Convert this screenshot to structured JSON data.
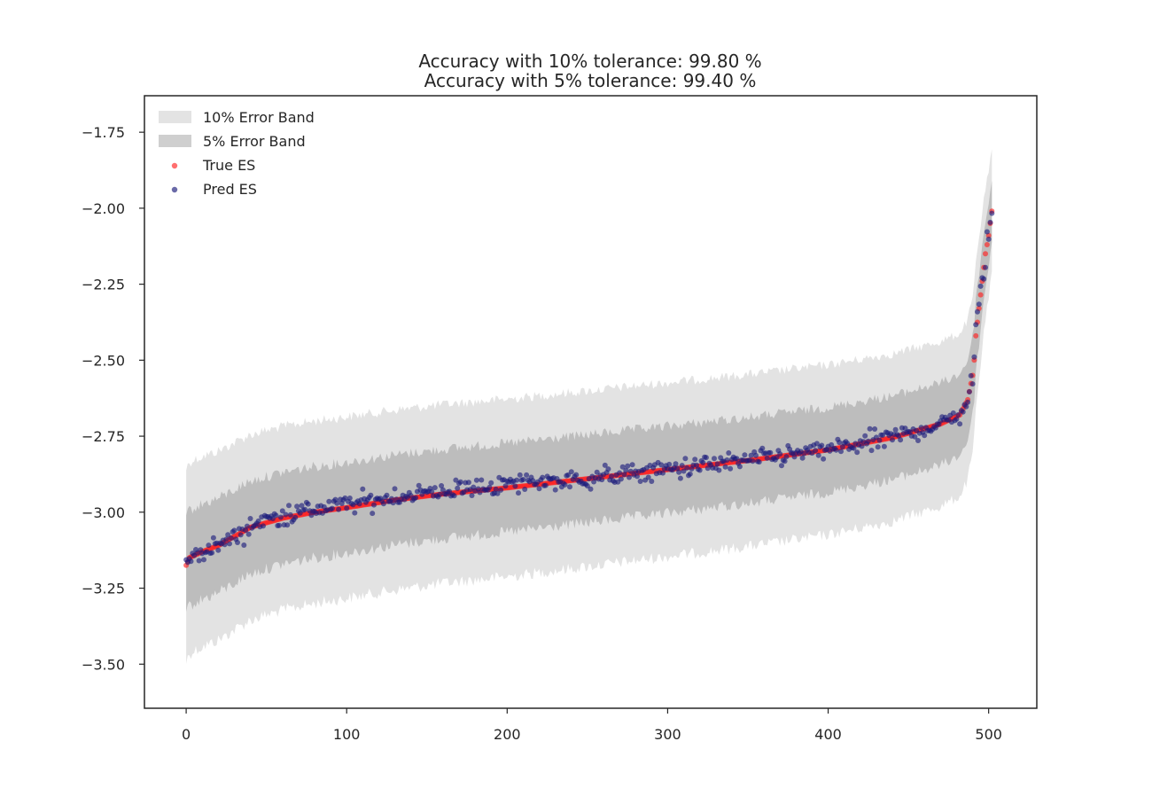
{
  "chart_data": {
    "type": "scatter",
    "title_lines": [
      "Accuracy with 10% tolerance: 99.80 %",
      "Accuracy with 5% tolerance: 99.40 %"
    ],
    "xlabel": "",
    "ylabel": "",
    "xlim": [
      -26,
      530
    ],
    "ylim": [
      -3.645,
      -1.63
    ],
    "x_ticks": [
      0,
      100,
      200,
      300,
      400,
      500
    ],
    "x_tick_labels": [
      "0",
      "100",
      "200",
      "300",
      "400",
      "500"
    ],
    "y_ticks": [
      -3.5,
      -3.25,
      -3.0,
      -2.75,
      -2.5,
      -2.25,
      -2.0,
      -1.75
    ],
    "y_tick_labels": [
      "−3.50",
      "−3.25",
      "−3.00",
      "−2.75",
      "−2.50",
      "−2.25",
      "−2.00",
      "−1.75"
    ],
    "n_points": 503,
    "true_es_curve": [
      [
        0,
        -3.175
      ],
      [
        2,
        -3.15
      ],
      [
        10,
        -3.13
      ],
      [
        20,
        -3.11
      ],
      [
        40,
        -3.05
      ],
      [
        60,
        -3.02
      ],
      [
        80,
        -3.0
      ],
      [
        100,
        -2.985
      ],
      [
        130,
        -2.96
      ],
      [
        160,
        -2.94
      ],
      [
        200,
        -2.92
      ],
      [
        250,
        -2.89
      ],
      [
        300,
        -2.86
      ],
      [
        350,
        -2.83
      ],
      [
        400,
        -2.795
      ],
      [
        440,
        -2.755
      ],
      [
        470,
        -2.71
      ],
      [
        482,
        -2.68
      ],
      [
        487,
        -2.63
      ],
      [
        490,
        -2.55
      ],
      [
        491,
        -2.5
      ],
      [
        492,
        -2.42
      ],
      [
        494,
        -2.33
      ],
      [
        496,
        -2.24
      ],
      [
        498,
        -2.15
      ],
      [
        500,
        -2.09
      ],
      [
        501,
        -2.05
      ],
      [
        502,
        -2.01
      ],
      [
        503,
        -1.87
      ]
    ],
    "grid": false,
    "legend_position": "top-left",
    "colors": {
      "band_10": "#e3e3e3",
      "band_5": "#bdbdbd",
      "true_es": "#ff2222",
      "pred_es": "#1a1a7a"
    },
    "series": [
      {
        "name": "10% Error Band",
        "kind": "band",
        "tolerance": 0.1
      },
      {
        "name": "5% Error Band",
        "kind": "band",
        "tolerance": 0.05
      },
      {
        "name": "True ES",
        "kind": "scatter"
      },
      {
        "name": "Pred ES",
        "kind": "scatter"
      }
    ]
  }
}
